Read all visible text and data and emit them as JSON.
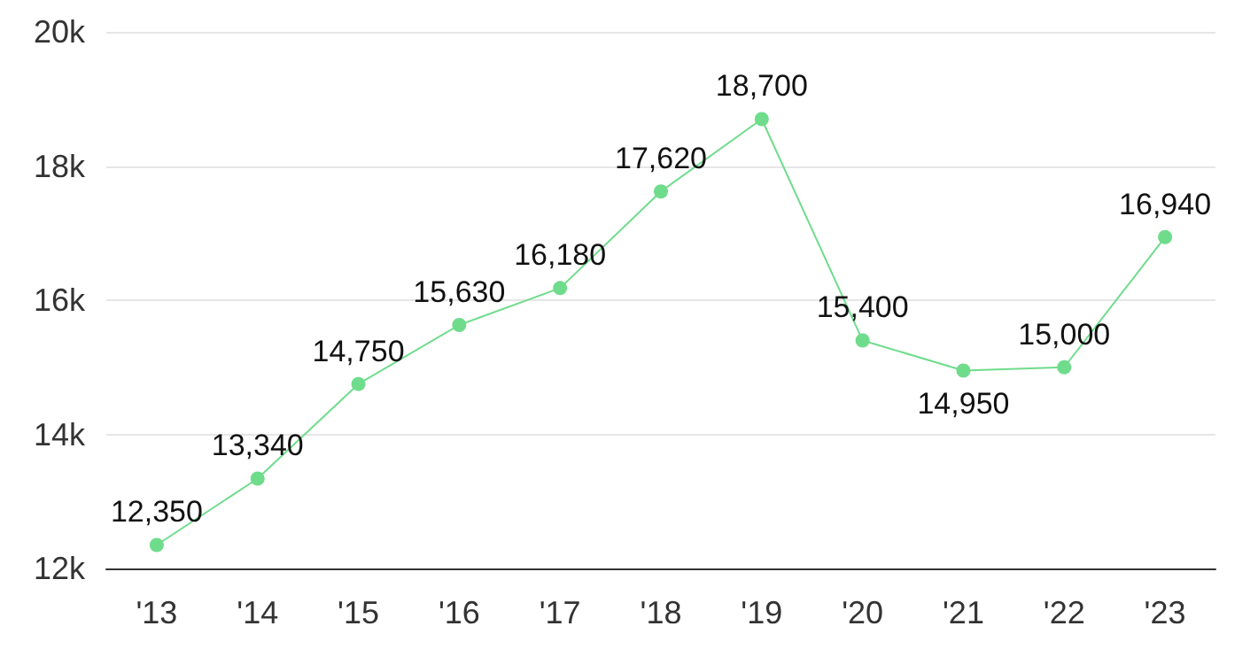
{
  "chart_data": {
    "type": "line",
    "categories": [
      "'13",
      "'14",
      "'15",
      "'16",
      "'17",
      "'18",
      "'19",
      "'20",
      "'21",
      "'22",
      "'23"
    ],
    "series": [
      {
        "color": "#6fdc8c",
        "values": [
          12350,
          13340,
          14750,
          15630,
          16180,
          17620,
          18700,
          15400,
          14950,
          15000,
          16940
        ],
        "value_labels": [
          "12,350",
          "13,340",
          "14,750",
          "15,630",
          "16,180",
          "17,620",
          "18,700",
          "15,400",
          "14,950",
          "15,000",
          "16,940"
        ]
      }
    ],
    "ylim": [
      12000,
      20000
    ],
    "yticks": [
      {
        "value": 12000,
        "label": "12k"
      },
      {
        "value": 14000,
        "label": "14k"
      },
      {
        "value": 16000,
        "label": "16k"
      },
      {
        "value": 18000,
        "label": "18k"
      },
      {
        "value": 20000,
        "label": "20k"
      }
    ],
    "grid": "y",
    "marker": "circle",
    "line_style": "solid"
  }
}
